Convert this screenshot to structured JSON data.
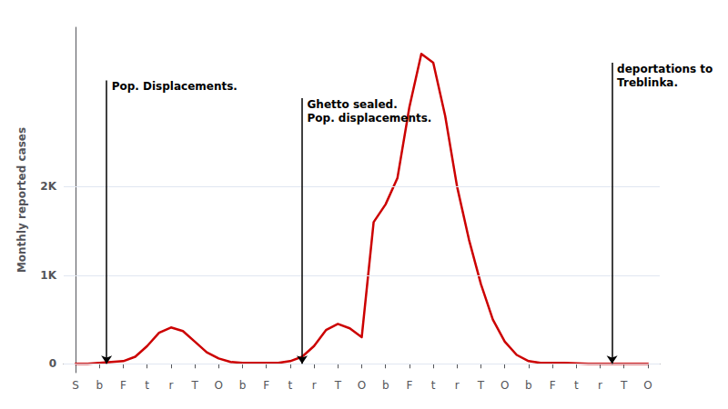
{
  "chart_data": {
    "type": "line",
    "ylabel": "Monthly reported cases",
    "x": [
      0,
      0.5,
      1,
      1.5,
      2,
      2.5,
      3,
      3.5,
      4,
      4.5,
      5,
      5.5,
      6,
      6.5,
      7,
      7.5,
      8,
      8.5,
      9,
      9.5,
      10,
      10.5,
      11,
      11.5,
      12,
      12.5,
      13,
      13.5,
      14,
      14.5,
      15,
      15.5,
      16,
      16.5,
      17,
      17.5,
      18,
      18.5,
      19,
      19.5,
      20,
      20.5,
      21,
      21.5,
      22,
      22.5,
      23,
      23.5,
      24
    ],
    "values": [
      0,
      0,
      10,
      20,
      30,
      80,
      200,
      350,
      410,
      370,
      250,
      130,
      60,
      20,
      10,
      10,
      10,
      10,
      30,
      80,
      200,
      380,
      450,
      400,
      300,
      1600,
      1800,
      2100,
      2900,
      3500,
      3400,
      2800,
      2000,
      1400,
      900,
      500,
      250,
      100,
      30,
      10,
      10,
      10,
      5,
      0,
      0,
      0,
      0,
      0,
      0
    ],
    "color": "#cc0000",
    "xlim": [
      -0.5,
      24.5
    ],
    "xticks": [
      {
        "value": 0,
        "label": "S"
      },
      {
        "value": 1,
        "label": "b"
      },
      {
        "value": 2,
        "label": "F"
      },
      {
        "value": 3,
        "label": "t"
      },
      {
        "value": 4,
        "label": "r"
      },
      {
        "value": 5,
        "label": "T"
      },
      {
        "value": 6,
        "label": "O"
      },
      {
        "value": 7,
        "label": "b"
      },
      {
        "value": 8,
        "label": "F"
      },
      {
        "value": 9,
        "label": "t"
      },
      {
        "value": 10,
        "label": "r"
      },
      {
        "value": 11,
        "label": "T"
      },
      {
        "value": 12,
        "label": "O"
      },
      {
        "value": 13,
        "label": "b"
      },
      {
        "value": 14,
        "label": "F"
      },
      {
        "value": 15,
        "label": "t"
      },
      {
        "value": 16,
        "label": "r"
      },
      {
        "value": 17,
        "label": "T"
      },
      {
        "value": 18,
        "label": "O"
      },
      {
        "value": 19,
        "label": "b"
      },
      {
        "value": 20,
        "label": "F"
      },
      {
        "value": 21,
        "label": "t"
      },
      {
        "value": 22,
        "label": "r"
      },
      {
        "value": 23,
        "label": "T"
      },
      {
        "value": 24,
        "label": "O"
      }
    ],
    "ylim": [
      -100,
      3800
    ],
    "yticks": [
      0,
      {
        "value": 1000,
        "label": "1K"
      },
      {
        "value": 2000,
        "label": "2K"
      }
    ],
    "grid": true,
    "annotations": [
      {
        "text": "Pop. Displacements.",
        "x": 1.3,
        "y": 3200,
        "arrow_y": 0
      },
      {
        "text": "Ghetto sealed.\nPop. displacements.",
        "x": 9.5,
        "y": 3000,
        "arrow_y": 0
      },
      {
        "text": "deportations to\nTreblinka.",
        "x": 22.5,
        "y": 3400,
        "arrow_y": 0
      }
    ]
  }
}
